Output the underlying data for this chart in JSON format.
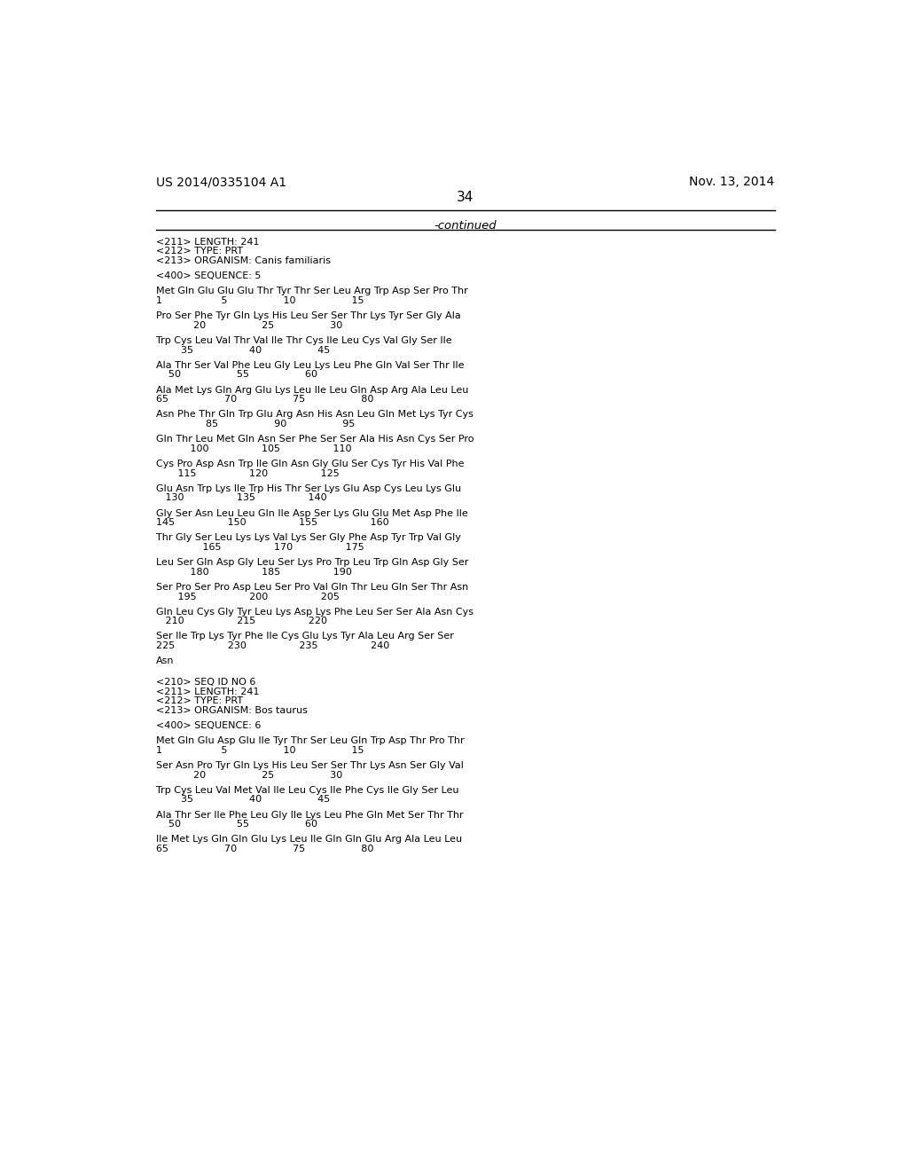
{
  "header_left": "US 2014/0335104 A1",
  "header_right": "Nov. 13, 2014",
  "page_number": "34",
  "continued_label": "-continued",
  "background_color": "#ffffff",
  "text_color": "#000000",
  "content": [
    {
      "type": "meta",
      "text": "<211> LENGTH: 241"
    },
    {
      "type": "meta",
      "text": "<212> TYPE: PRT"
    },
    {
      "type": "meta",
      "text": "<213> ORGANISM: Canis familiaris"
    },
    {
      "type": "blank"
    },
    {
      "type": "meta",
      "text": "<400> SEQUENCE: 5"
    },
    {
      "type": "blank"
    },
    {
      "type": "seq",
      "text": "Met Gln Glu Glu Glu Thr Tyr Thr Ser Leu Arg Trp Asp Ser Pro Thr"
    },
    {
      "type": "num",
      "text": "1                   5                  10                  15"
    },
    {
      "type": "blank"
    },
    {
      "type": "seq",
      "text": "Pro Ser Phe Tyr Gln Lys His Leu Ser Ser Thr Lys Tyr Ser Gly Ala"
    },
    {
      "type": "num",
      "text": "            20                  25                  30"
    },
    {
      "type": "blank"
    },
    {
      "type": "seq",
      "text": "Trp Cys Leu Val Thr Val Ile Thr Cys Ile Leu Cys Val Gly Ser Ile"
    },
    {
      "type": "num",
      "text": "        35                  40                  45"
    },
    {
      "type": "blank"
    },
    {
      "type": "seq",
      "text": "Ala Thr Ser Val Phe Leu Gly Leu Lys Leu Phe Gln Val Ser Thr Ile"
    },
    {
      "type": "num",
      "text": "    50                  55                  60"
    },
    {
      "type": "blank"
    },
    {
      "type": "seq",
      "text": "Ala Met Lys Gln Arg Glu Lys Leu Ile Leu Gln Asp Arg Ala Leu Leu"
    },
    {
      "type": "num",
      "text": "65                  70                  75                  80"
    },
    {
      "type": "blank"
    },
    {
      "type": "seq",
      "text": "Asn Phe Thr Gln Trp Glu Arg Asn His Asn Leu Gln Met Lys Tyr Cys"
    },
    {
      "type": "num",
      "text": "                85                  90                  95"
    },
    {
      "type": "blank"
    },
    {
      "type": "seq",
      "text": "Gln Thr Leu Met Gln Asn Ser Phe Ser Ser Ala His Asn Cys Ser Pro"
    },
    {
      "type": "num",
      "text": "           100                 105                 110"
    },
    {
      "type": "blank"
    },
    {
      "type": "seq",
      "text": "Cys Pro Asp Asn Trp Ile Gln Asn Gly Glu Ser Cys Tyr His Val Phe"
    },
    {
      "type": "num",
      "text": "       115                 120                 125"
    },
    {
      "type": "blank"
    },
    {
      "type": "seq",
      "text": "Glu Asn Trp Lys Ile Trp His Thr Ser Lys Glu Asp Cys Leu Lys Glu"
    },
    {
      "type": "num",
      "text": "   130                 135                 140"
    },
    {
      "type": "blank"
    },
    {
      "type": "seq",
      "text": "Gly Ser Asn Leu Leu Gln Ile Asp Ser Lys Glu Glu Met Asp Phe Ile"
    },
    {
      "type": "num",
      "text": "145                 150                 155                 160"
    },
    {
      "type": "blank"
    },
    {
      "type": "seq",
      "text": "Thr Gly Ser Leu Lys Lys Val Lys Ser Gly Phe Asp Tyr Trp Val Gly"
    },
    {
      "type": "num",
      "text": "               165                 170                 175"
    },
    {
      "type": "blank"
    },
    {
      "type": "seq",
      "text": "Leu Ser Gln Asp Gly Leu Ser Lys Pro Trp Leu Trp Gln Asp Gly Ser"
    },
    {
      "type": "num",
      "text": "           180                 185                 190"
    },
    {
      "type": "blank"
    },
    {
      "type": "seq",
      "text": "Ser Pro Ser Pro Asp Leu Ser Pro Val Gln Thr Leu Gln Ser Thr Asn"
    },
    {
      "type": "num",
      "text": "       195                 200                 205"
    },
    {
      "type": "blank"
    },
    {
      "type": "seq",
      "text": "Gln Leu Cys Gly Tyr Leu Lys Asp Lys Phe Leu Ser Ser Ala Asn Cys"
    },
    {
      "type": "num",
      "text": "   210                 215                 220"
    },
    {
      "type": "blank"
    },
    {
      "type": "seq",
      "text": "Ser Ile Trp Lys Tyr Phe Ile Cys Glu Lys Tyr Ala Leu Arg Ser Ser"
    },
    {
      "type": "num",
      "text": "225                 230                 235                 240"
    },
    {
      "type": "blank"
    },
    {
      "type": "seq",
      "text": "Asn"
    },
    {
      "type": "blank"
    },
    {
      "type": "blank"
    },
    {
      "type": "meta",
      "text": "<210> SEQ ID NO 6"
    },
    {
      "type": "meta",
      "text": "<211> LENGTH: 241"
    },
    {
      "type": "meta",
      "text": "<212> TYPE: PRT"
    },
    {
      "type": "meta",
      "text": "<213> ORGANISM: Bos taurus"
    },
    {
      "type": "blank"
    },
    {
      "type": "meta",
      "text": "<400> SEQUENCE: 6"
    },
    {
      "type": "blank"
    },
    {
      "type": "seq",
      "text": "Met Gln Glu Asp Glu Ile Tyr Thr Ser Leu Gln Trp Asp Thr Pro Thr"
    },
    {
      "type": "num",
      "text": "1                   5                  10                  15"
    },
    {
      "type": "blank"
    },
    {
      "type": "seq",
      "text": "Ser Asn Pro Tyr Gln Lys His Leu Ser Ser Thr Lys Asn Ser Gly Val"
    },
    {
      "type": "num",
      "text": "            20                  25                  30"
    },
    {
      "type": "blank"
    },
    {
      "type": "seq",
      "text": "Trp Cys Leu Val Met Val Ile Leu Cys Ile Phe Cys Ile Gly Ser Leu"
    },
    {
      "type": "num",
      "text": "        35                  40                  45"
    },
    {
      "type": "blank"
    },
    {
      "type": "seq",
      "text": "Ala Thr Ser Ile Phe Leu Gly Ile Lys Leu Phe Gln Met Ser Thr Thr"
    },
    {
      "type": "num",
      "text": "    50                  55                  60"
    },
    {
      "type": "blank"
    },
    {
      "type": "seq",
      "text": "Ile Met Lys Gln Gln Glu Lys Leu Ile Gln Gln Glu Arg Ala Leu Leu"
    },
    {
      "type": "num",
      "text": "65                  70                  75                  80"
    }
  ]
}
